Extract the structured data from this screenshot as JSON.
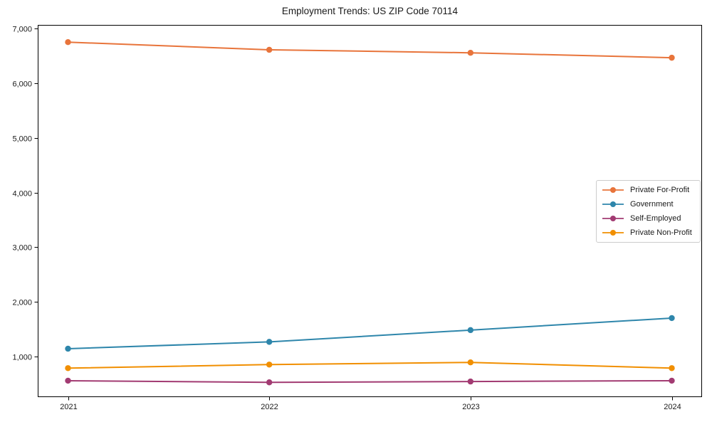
{
  "chart_data": {
    "type": "line",
    "title": "Employment Trends: US ZIP Code 70114",
    "xlabel": "",
    "ylabel": "",
    "categories": [
      "2021",
      "2022",
      "2023",
      "2024"
    ],
    "series": [
      {
        "name": "Private For-Profit",
        "color": "#E8743B",
        "values": [
          6750,
          6610,
          6555,
          6465
        ]
      },
      {
        "name": "Government",
        "color": "#2E86AB",
        "values": [
          1145,
          1270,
          1485,
          1705
        ]
      },
      {
        "name": "Self-Employed",
        "color": "#A23B72",
        "values": [
          560,
          530,
          545,
          560
        ]
      },
      {
        "name": "Private Non-Profit",
        "color": "#F18F01",
        "values": [
          790,
          855,
          895,
          790
        ]
      }
    ],
    "yticks": [
      1000,
      2000,
      3000,
      4000,
      5000,
      6000,
      7000
    ],
    "ytick_labels": [
      "1,000",
      "2,000",
      "3,000",
      "4,000",
      "5,000",
      "6,000",
      "7,000"
    ],
    "ylim": [
      260,
      7065
    ],
    "grid": false,
    "marker": "circle",
    "legend_position": "center right",
    "background_color": "#ffffff",
    "axis_color": "#000000",
    "text_color": "#1a1a1a"
  }
}
